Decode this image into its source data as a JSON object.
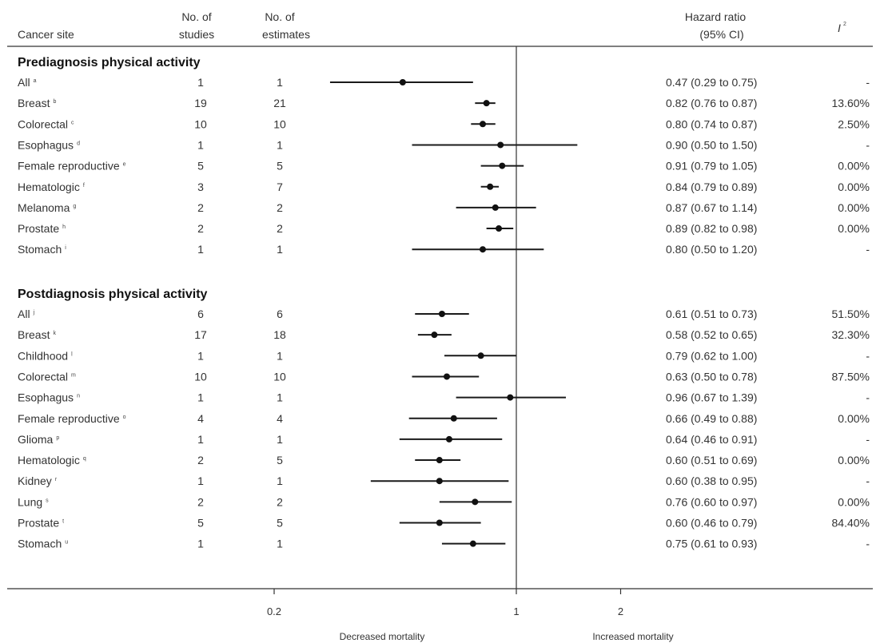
{
  "headers": {
    "site": "Cancer site",
    "studies": [
      "No. of",
      "studies"
    ],
    "estimates": [
      "No. of",
      "estimates"
    ],
    "hr": [
      "Hazard ratio",
      "(95% CI)"
    ],
    "i2": "I",
    "i2_sup": "2"
  },
  "footer": {
    "decreased": "Decreased mortality",
    "increased": "Increased mortality"
  },
  "axis": {
    "ticks": [
      {
        "value": 0.2,
        "label": "0.2"
      },
      {
        "value": 1,
        "label": "1"
      },
      {
        "value": 2,
        "label": "2"
      }
    ],
    "reference": 1,
    "scale": "log"
  },
  "chart_data": {
    "type": "forest",
    "sections": [
      {
        "title": "Prediagnosis physical activity",
        "rows": [
          {
            "site": "All",
            "note": "a",
            "studies": "1",
            "estimates": "1",
            "hr": 0.47,
            "lo": 0.29,
            "hi": 0.75,
            "hr_text": "0.47 (0.29 to 0.75)",
            "i2": "-"
          },
          {
            "site": "Breast",
            "note": "b",
            "studies": "19",
            "estimates": "21",
            "hr": 0.82,
            "lo": 0.76,
            "hi": 0.87,
            "hr_text": "0.82 (0.76 to 0.87)",
            "i2": "13.60%"
          },
          {
            "site": "Colorectal",
            "note": "c",
            "studies": "10",
            "estimates": "10",
            "hr": 0.8,
            "lo": 0.74,
            "hi": 0.87,
            "hr_text": "0.80 (0.74 to 0.87)",
            "i2": "2.50%"
          },
          {
            "site": "Esophagus",
            "note": "d",
            "studies": "1",
            "estimates": "1",
            "hr": 0.9,
            "lo": 0.5,
            "hi": 1.5,
            "hr_text": "0.90 (0.50 to 1.50)",
            "i2": "-"
          },
          {
            "site": "Female reproductive",
            "note": "e",
            "studies": "5",
            "estimates": "5",
            "hr": 0.91,
            "lo": 0.79,
            "hi": 1.05,
            "hr_text": "0.91 (0.79 to 1.05)",
            "i2": "0.00%"
          },
          {
            "site": "Hematologic",
            "note": "f",
            "studies": "3",
            "estimates": "7",
            "hr": 0.84,
            "lo": 0.79,
            "hi": 0.89,
            "hr_text": "0.84 (0.79 to 0.89)",
            "i2": "0.00%"
          },
          {
            "site": "Melanoma",
            "note": "g",
            "studies": "2",
            "estimates": "2",
            "hr": 0.87,
            "lo": 0.67,
            "hi": 1.14,
            "hr_text": "0.87 (0.67 to 1.14)",
            "i2": "0.00%"
          },
          {
            "site": "Prostate",
            "note": "h",
            "studies": "2",
            "estimates": "2",
            "hr": 0.89,
            "lo": 0.82,
            "hi": 0.98,
            "hr_text": "0.89 (0.82 to 0.98)",
            "i2": "0.00%"
          },
          {
            "site": "Stomach",
            "note": "i",
            "studies": "1",
            "estimates": "1",
            "hr": 0.8,
            "lo": 0.5,
            "hi": 1.2,
            "hr_text": "0.80 (0.50 to 1.20)",
            "i2": "-"
          }
        ]
      },
      {
        "title": "Postdiagnosis physical activity",
        "rows": [
          {
            "site": "All",
            "note": "j",
            "studies": "6",
            "estimates": "6",
            "hr": 0.61,
            "lo": 0.51,
            "hi": 0.73,
            "hr_text": "0.61 (0.51 to 0.73)",
            "i2": "51.50%"
          },
          {
            "site": "Breast",
            "note": "k",
            "studies": "17",
            "estimates": "18",
            "hr": 0.58,
            "lo": 0.52,
            "hi": 0.65,
            "hr_text": "0.58 (0.52 to 0.65)",
            "i2": "32.30%"
          },
          {
            "site": "Childhood",
            "note": "l",
            "studies": "1",
            "estimates": "1",
            "hr": 0.79,
            "lo": 0.62,
            "hi": 1.0,
            "hr_text": "0.79 (0.62 to 1.00)",
            "i2": "-"
          },
          {
            "site": "Colorectal",
            "note": "m",
            "studies": "10",
            "estimates": "10",
            "hr": 0.63,
            "lo": 0.5,
            "hi": 0.78,
            "hr_text": "0.63 (0.50 to 0.78)",
            "i2": "87.50%"
          },
          {
            "site": "Esophagus",
            "note": "n",
            "studies": "1",
            "estimates": "1",
            "hr": 0.96,
            "lo": 0.67,
            "hi": 1.39,
            "hr_text": "0.96 (0.67 to 1.39)",
            "i2": "-"
          },
          {
            "site": "Female reproductive",
            "note": "o",
            "studies": "4",
            "estimates": "4",
            "hr": 0.66,
            "lo": 0.49,
            "hi": 0.88,
            "hr_text": "0.66 (0.49 to 0.88)",
            "i2": "0.00%"
          },
          {
            "site": "Glioma",
            "note": "p",
            "studies": "1",
            "estimates": "1",
            "hr": 0.64,
            "lo": 0.46,
            "hi": 0.91,
            "hr_text": "0.64 (0.46 to 0.91)",
            "i2": "-"
          },
          {
            "site": "Hematologic",
            "note": "q",
            "studies": "2",
            "estimates": "5",
            "hr": 0.6,
            "lo": 0.51,
            "hi": 0.69,
            "hr_text": "0.60 (0.51 to 0.69)",
            "i2": "0.00%"
          },
          {
            "site": "Kidney",
            "note": "r",
            "studies": "1",
            "estimates": "1",
            "hr": 0.6,
            "lo": 0.38,
            "hi": 0.95,
            "hr_text": "0.60 (0.38 to 0.95)",
            "i2": "-"
          },
          {
            "site": "Lung",
            "note": "s",
            "studies": "2",
            "estimates": "2",
            "hr": 0.76,
            "lo": 0.6,
            "hi": 0.97,
            "hr_text": "0.76 (0.60 to 0.97)",
            "i2": "0.00%"
          },
          {
            "site": "Prostate",
            "note": "t",
            "studies": "5",
            "estimates": "5",
            "hr": 0.6,
            "lo": 0.46,
            "hi": 0.79,
            "hr_text": "0.60 (0.46 to 0.79)",
            "i2": "84.40%"
          },
          {
            "site": "Stomach",
            "note": "u",
            "studies": "1",
            "estimates": "1",
            "hr": 0.75,
            "lo": 0.61,
            "hi": 0.93,
            "hr_text": "0.75 (0.61 to 0.93)",
            "i2": "-"
          }
        ]
      }
    ]
  }
}
